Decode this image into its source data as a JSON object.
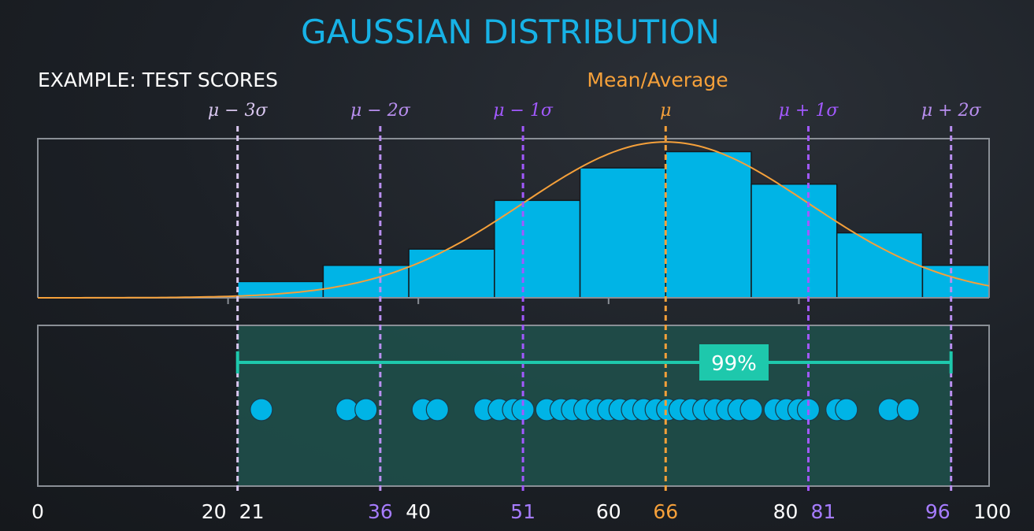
{
  "chart_data": {
    "type": "bar",
    "title": "GAUSSIAN DISTRIBUTION",
    "subtitle": "EXAMPLE: TEST SCORES",
    "mean_label": "Mean/Average",
    "xlim": [
      0,
      100
    ],
    "bins": [
      {
        "start": 21,
        "end": 30,
        "value": 1
      },
      {
        "start": 30,
        "end": 39,
        "value": 2
      },
      {
        "start": 39,
        "end": 48,
        "value": 3
      },
      {
        "start": 48,
        "end": 57,
        "value": 6
      },
      {
        "start": 57,
        "end": 66,
        "value": 8
      },
      {
        "start": 66,
        "end": 75,
        "value": 9
      },
      {
        "start": 75,
        "end": 84,
        "value": 7
      },
      {
        "start": 84,
        "end": 93,
        "value": 4
      },
      {
        "start": 93,
        "end": 100,
        "value": 2
      }
    ],
    "hist_ymax": 9.8,
    "curve": {
      "mean": 66,
      "sd": 15,
      "peak": 9.6
    },
    "ticks": [
      {
        "value": 0,
        "label": "0",
        "color": "#ffffff"
      },
      {
        "value": 20,
        "label": "20",
        "color": "#ffffff"
      },
      {
        "value": 21,
        "label": "21",
        "color": "#ffffff"
      },
      {
        "value": 36,
        "label": "36",
        "color": "#a67cff"
      },
      {
        "value": 40,
        "label": "40",
        "color": "#ffffff"
      },
      {
        "value": 51,
        "label": "51",
        "color": "#a67cff"
      },
      {
        "value": 60,
        "label": "60",
        "color": "#ffffff"
      },
      {
        "value": 66,
        "label": "66",
        "color": "#f5a03a"
      },
      {
        "value": 80,
        "label": "80",
        "color": "#ffffff"
      },
      {
        "value": 81,
        "label": "81",
        "color": "#a67cff"
      },
      {
        "value": 96,
        "label": "96",
        "color": "#a67cff"
      },
      {
        "value": 100,
        "label": "100",
        "color": "#ffffff"
      }
    ],
    "sigma_lines": [
      {
        "value": 21,
        "label": "μ − 3σ",
        "color": "#d9c7f0"
      },
      {
        "value": 36,
        "label": "μ − 2σ",
        "color": "#b98ff0"
      },
      {
        "value": 51,
        "label": "μ − 1σ",
        "color": "#a259ff"
      },
      {
        "value": 66,
        "label": "μ",
        "color": "#f5a03a"
      },
      {
        "value": 81,
        "label": "μ + 1σ",
        "color": "#a259ff"
      },
      {
        "value": 96,
        "label": "μ + 2σ",
        "color": "#b98ff0"
      }
    ],
    "range_band": {
      "start": 21,
      "end": 96,
      "label": "99%"
    },
    "points": [
      23.5,
      32.5,
      34.5,
      40.5,
      42,
      47,
      48.5,
      50,
      51,
      53.5,
      55,
      56.2,
      57.5,
      58.8,
      60,
      61.2,
      62.5,
      63.7,
      65,
      66.2,
      67.5,
      68.7,
      70,
      71.2,
      72.5,
      73.7,
      75,
      77.5,
      78.7,
      80,
      81,
      84,
      85,
      89.5,
      91.5
    ],
    "colors": {
      "title": "#17b2e6",
      "bar": "#00b4e6",
      "bar_edge": "#15181c",
      "curve": "#f5a03a",
      "band": "#1f4f4a",
      "range": "#1ec8ac",
      "dot": "#00b4e6",
      "axis": "#8a8f96"
    }
  }
}
